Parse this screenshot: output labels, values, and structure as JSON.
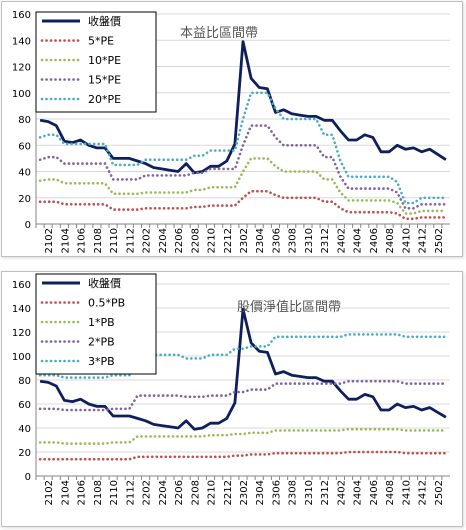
{
  "chart_data": [
    {
      "type": "line",
      "title": "本益比區間帶",
      "xlabel": "",
      "ylabel": "",
      "ylim": [
        0,
        160
      ],
      "yticks": [
        0,
        20,
        40,
        60,
        80,
        100,
        120,
        140,
        160
      ],
      "grid": true,
      "legend": "top-left",
      "categories": [
        "2101",
        "2102",
        "2103",
        "2104",
        "2105",
        "2106",
        "2107",
        "2108",
        "2109",
        "2110",
        "2111",
        "2112",
        "2201",
        "2202",
        "2203",
        "2204",
        "2205",
        "2206",
        "2207",
        "2208",
        "2209",
        "2210",
        "2211",
        "2212",
        "2301",
        "2302",
        "2303",
        "2304",
        "2305",
        "2306",
        "2307",
        "2308",
        "2309",
        "2310",
        "2311",
        "2312",
        "2401",
        "2402",
        "2403",
        "2404",
        "2405",
        "2406",
        "2407",
        "2408",
        "2409",
        "2410",
        "2411",
        "2412",
        "2501",
        "2502",
        "2503"
      ],
      "xtick_labels": [
        "2102",
        "2104",
        "2106",
        "2108",
        "2110",
        "2112",
        "2202",
        "2204",
        "2206",
        "2208",
        "2210",
        "2212",
        "2302",
        "2304",
        "2306",
        "2308",
        "2310",
        "2312",
        "2402",
        "2404",
        "2406",
        "2408",
        "2410",
        "2412",
        "2502"
      ],
      "series": [
        {
          "name": "收盤價",
          "color": "#0f1f5c",
          "style": "solid",
          "values": [
            79,
            78,
            75,
            63,
            62,
            64,
            60,
            58,
            58,
            50,
            50,
            50,
            48,
            46,
            43,
            42,
            41,
            40,
            46,
            39,
            40,
            44,
            44,
            48,
            61,
            139,
            111,
            104,
            103,
            85,
            87,
            84,
            83,
            82,
            82,
            79,
            79,
            71,
            64,
            64,
            68,
            66,
            55,
            55,
            60,
            57,
            58,
            55,
            57,
            53,
            49
          ]
        },
        {
          "name": "5*PE",
          "color": "#c0504d",
          "style": "dotted",
          "values": [
            17,
            17,
            17,
            15,
            15,
            15,
            15,
            15,
            15,
            11,
            11,
            11,
            11,
            12,
            12,
            12,
            12,
            12,
            12,
            13,
            13,
            14,
            14,
            14,
            14,
            20,
            25,
            25,
            25,
            22,
            20,
            20,
            20,
            20,
            20,
            17,
            17,
            12,
            9,
            9,
            9,
            9,
            9,
            9,
            8,
            4,
            4,
            5,
            5,
            5,
            5
          ]
        },
        {
          "name": "10*PE",
          "color": "#9bbb59",
          "style": "dotted",
          "values": [
            33,
            34,
            34,
            31,
            31,
            31,
            31,
            31,
            31,
            23,
            23,
            23,
            23,
            24,
            24,
            24,
            24,
            24,
            24,
            26,
            26,
            28,
            28,
            28,
            28,
            40,
            50,
            50,
            50,
            44,
            40,
            40,
            40,
            40,
            40,
            34,
            34,
            24,
            18,
            18,
            18,
            18,
            18,
            18,
            16,
            8,
            8,
            10,
            10,
            10,
            10
          ]
        },
        {
          "name": "15*PE",
          "color": "#8064a2",
          "style": "dotted",
          "values": [
            49,
            51,
            51,
            46,
            46,
            46,
            46,
            46,
            46,
            34,
            34,
            34,
            34,
            37,
            37,
            37,
            37,
            37,
            37,
            39,
            39,
            42,
            42,
            42,
            42,
            60,
            75,
            75,
            75,
            66,
            60,
            60,
            60,
            60,
            60,
            51,
            51,
            36,
            27,
            27,
            27,
            27,
            27,
            27,
            24,
            12,
            12,
            15,
            15,
            15,
            15
          ]
        },
        {
          "name": "20*PE",
          "color": "#4bacc6",
          "style": "dotted",
          "values": [
            66,
            68,
            68,
            61,
            61,
            61,
            61,
            61,
            61,
            45,
            45,
            45,
            45,
            49,
            49,
            49,
            49,
            49,
            49,
            52,
            52,
            56,
            56,
            56,
            56,
            80,
            100,
            100,
            100,
            88,
            80,
            80,
            80,
            80,
            80,
            68,
            68,
            48,
            36,
            36,
            36,
            36,
            36,
            36,
            32,
            16,
            16,
            20,
            20,
            20,
            20
          ]
        }
      ]
    },
    {
      "type": "line",
      "title": "股價淨值比區間帶",
      "xlabel": "",
      "ylabel": "",
      "ylim": [
        0,
        160
      ],
      "yticks": [
        0,
        20,
        40,
        60,
        80,
        100,
        120,
        140,
        160
      ],
      "grid": true,
      "legend": "top-left",
      "categories": [
        "2101",
        "2102",
        "2103",
        "2104",
        "2105",
        "2106",
        "2107",
        "2108",
        "2109",
        "2110",
        "2111",
        "2112",
        "2201",
        "2202",
        "2203",
        "2204",
        "2205",
        "2206",
        "2207",
        "2208",
        "2209",
        "2210",
        "2211",
        "2212",
        "2301",
        "2302",
        "2303",
        "2304",
        "2305",
        "2306",
        "2307",
        "2308",
        "2309",
        "2310",
        "2311",
        "2312",
        "2401",
        "2402",
        "2403",
        "2404",
        "2405",
        "2406",
        "2407",
        "2408",
        "2409",
        "2410",
        "2411",
        "2412",
        "2501",
        "2502",
        "2503"
      ],
      "xtick_labels": [
        "2102",
        "2104",
        "2106",
        "2108",
        "2110",
        "2112",
        "2202",
        "2204",
        "2206",
        "2208",
        "2210",
        "2212",
        "2302",
        "2304",
        "2306",
        "2308",
        "2310",
        "2312",
        "2402",
        "2404",
        "2406",
        "2408",
        "2410",
        "2412",
        "2502"
      ],
      "series": [
        {
          "name": "收盤價",
          "color": "#0f1f5c",
          "style": "solid",
          "values": [
            79,
            78,
            75,
            63,
            62,
            64,
            60,
            58,
            58,
            50,
            50,
            50,
            48,
            46,
            43,
            42,
            41,
            40,
            46,
            39,
            40,
            44,
            44,
            48,
            61,
            139,
            111,
            104,
            103,
            85,
            87,
            84,
            83,
            82,
            82,
            79,
            79,
            71,
            64,
            64,
            68,
            66,
            55,
            55,
            60,
            57,
            58,
            55,
            57,
            53,
            49
          ]
        },
        {
          "name": "0.5*PB",
          "color": "#c0504d",
          "style": "dotted",
          "values": [
            14,
            14,
            14,
            14,
            14,
            14,
            14,
            14,
            14,
            14,
            14,
            14,
            16,
            16,
            16,
            16,
            16,
            16,
            16,
            16,
            16,
            16,
            16,
            16,
            17,
            17,
            18,
            18,
            18,
            19,
            19,
            19,
            19,
            19,
            19,
            19,
            19,
            19,
            20,
            20,
            20,
            20,
            20,
            20,
            20,
            19,
            19,
            19,
            19,
            19,
            19
          ]
        },
        {
          "name": "1*PB",
          "color": "#9bbb59",
          "style": "dotted",
          "values": [
            28,
            28,
            28,
            27,
            27,
            27,
            27,
            27,
            27,
            28,
            28,
            28,
            33,
            33,
            33,
            33,
            33,
            33,
            33,
            33,
            33,
            34,
            34,
            34,
            35,
            35,
            36,
            36,
            36,
            38,
            38,
            38,
            38,
            38,
            38,
            38,
            38,
            38,
            39,
            39,
            39,
            39,
            39,
            39,
            39,
            38,
            38,
            38,
            38,
            38,
            38
          ]
        },
        {
          "name": "2*PB",
          "color": "#8064a2",
          "style": "dotted",
          "values": [
            56,
            56,
            56,
            55,
            55,
            55,
            55,
            55,
            55,
            56,
            56,
            56,
            67,
            67,
            67,
            67,
            67,
            67,
            66,
            66,
            66,
            67,
            67,
            67,
            70,
            70,
            72,
            72,
            72,
            77,
            77,
            77,
            77,
            77,
            77,
            77,
            77,
            77,
            79,
            79,
            79,
            79,
            79,
            79,
            79,
            77,
            77,
            77,
            77,
            77,
            77
          ]
        },
        {
          "name": "3*PB",
          "color": "#4bacc6",
          "style": "dotted",
          "values": [
            84,
            84,
            84,
            82,
            82,
            82,
            82,
            82,
            82,
            84,
            84,
            84,
            101,
            101,
            101,
            101,
            101,
            101,
            98,
            98,
            98,
            101,
            101,
            101,
            106,
            106,
            108,
            108,
            108,
            116,
            116,
            116,
            116,
            116,
            116,
            116,
            116,
            116,
            118,
            118,
            118,
            118,
            118,
            118,
            118,
            116,
            116,
            116,
            116,
            116,
            116
          ]
        }
      ]
    }
  ]
}
